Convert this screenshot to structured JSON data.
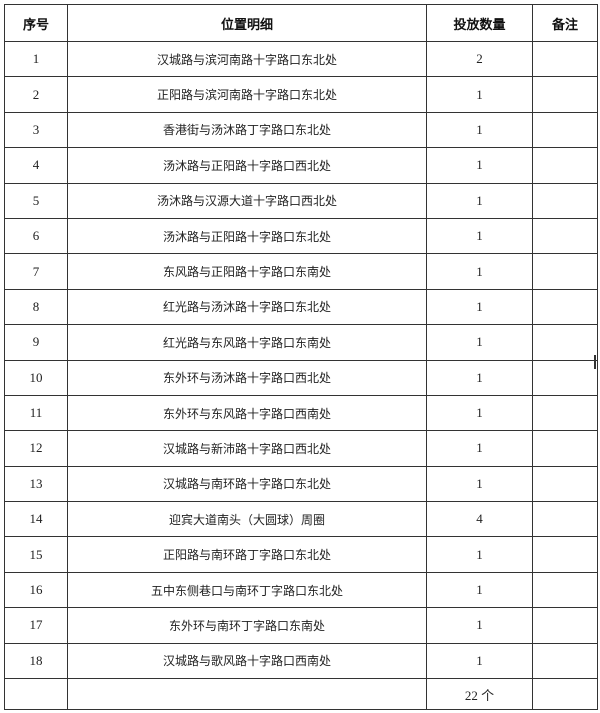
{
  "table": {
    "headers": [
      "序号",
      "位置明细",
      "投放数量",
      "备注"
    ],
    "rows": [
      {
        "no": "1",
        "location": "汉城路与滨河南路十字路口东北处",
        "qty": "2",
        "note": ""
      },
      {
        "no": "2",
        "location": "正阳路与滨河南路十字路口东北处",
        "qty": "1",
        "note": ""
      },
      {
        "no": "3",
        "location": "香港街与汤沐路丁字路口东北处",
        "qty": "1",
        "note": ""
      },
      {
        "no": "4",
        "location": "汤沐路与正阳路十字路口西北处",
        "qty": "1",
        "note": ""
      },
      {
        "no": "5",
        "location": "汤沐路与汉源大道十字路口西北处",
        "qty": "1",
        "note": ""
      },
      {
        "no": "6",
        "location": "汤沐路与正阳路十字路口东北处",
        "qty": "1",
        "note": ""
      },
      {
        "no": "7",
        "location": "东风路与正阳路十字路口东南处",
        "qty": "1",
        "note": ""
      },
      {
        "no": "8",
        "location": "红光路与汤沐路十字路口东北处",
        "qty": "1",
        "note": ""
      },
      {
        "no": "9",
        "location": "红光路与东风路十字路口东南处",
        "qty": "1",
        "note": ""
      },
      {
        "no": "10",
        "location": "东外环与汤沐路十字路口西北处",
        "qty": "1",
        "note": ""
      },
      {
        "no": "11",
        "location": "东外环与东风路十字路口西南处",
        "qty": "1",
        "note": ""
      },
      {
        "no": "12",
        "location": "汉城路与新沛路十字路口西北处",
        "qty": "1",
        "note": ""
      },
      {
        "no": "13",
        "location": "汉城路与南环路十字路口东北处",
        "qty": "1",
        "note": ""
      },
      {
        "no": "14",
        "location": "迎宾大道南头（大圆球）周圈",
        "qty": "4",
        "note": ""
      },
      {
        "no": "15",
        "location": "正阳路与南环路丁字路口东北处",
        "qty": "1",
        "note": ""
      },
      {
        "no": "16",
        "location": "五中东侧巷口与南环丁字路口东北处",
        "qty": "1",
        "note": ""
      },
      {
        "no": "17",
        "location": "东外环与南环丁字路口东南处",
        "qty": "1",
        "note": ""
      },
      {
        "no": "18",
        "location": "汉城路与歌风路十字路口西南处",
        "qty": "1",
        "note": ""
      }
    ],
    "total": {
      "no": "",
      "location": "",
      "qty": "22 个",
      "note": ""
    }
  }
}
